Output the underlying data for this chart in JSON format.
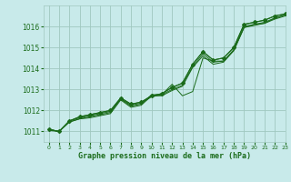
{
  "title": "Graphe pression niveau de la mer (hPa)",
  "background_color": "#c8eaea",
  "grid_color": "#a0c8c0",
  "line_color": "#1a6b1a",
  "xlim": [
    -0.5,
    23
  ],
  "ylim": [
    1010.5,
    1017.0
  ],
  "yticks": [
    1011,
    1012,
    1013,
    1014,
    1015,
    1016
  ],
  "xticks": [
    0,
    1,
    2,
    3,
    4,
    5,
    6,
    7,
    8,
    9,
    10,
    11,
    12,
    13,
    14,
    15,
    16,
    17,
    18,
    19,
    20,
    21,
    22,
    23
  ],
  "series": [
    [
      1011.1,
      1011.0,
      1011.5,
      1011.7,
      1011.8,
      1011.9,
      1012.0,
      1012.6,
      1012.3,
      1012.4,
      1012.7,
      1012.8,
      1013.1,
      1013.3,
      1014.2,
      1014.8,
      1014.4,
      1014.5,
      1015.0,
      1016.1,
      1016.2,
      1016.3,
      1016.5,
      1016.6
    ],
    [
      1011.1,
      1011.0,
      1011.5,
      1011.65,
      1011.75,
      1011.85,
      1011.95,
      1012.55,
      1012.25,
      1012.35,
      1012.65,
      1012.75,
      1013.25,
      1012.7,
      1012.9,
      1014.5,
      1014.35,
      1014.35,
      1014.85,
      1015.95,
      1016.1,
      1016.15,
      1016.4,
      1016.55
    ],
    [
      1011.05,
      1011.0,
      1011.45,
      1011.6,
      1011.7,
      1011.8,
      1011.9,
      1012.55,
      1012.2,
      1012.3,
      1012.75,
      1012.75,
      1013.0,
      1013.2,
      1014.1,
      1014.7,
      1014.3,
      1014.35,
      1014.9,
      1016.0,
      1016.1,
      1016.2,
      1016.4,
      1016.55
    ],
    [
      1011.1,
      1011.0,
      1011.45,
      1011.6,
      1011.65,
      1011.75,
      1011.85,
      1012.5,
      1012.15,
      1012.25,
      1012.7,
      1012.7,
      1012.95,
      1013.15,
      1014.05,
      1014.6,
      1014.2,
      1014.3,
      1014.85,
      1015.95,
      1016.05,
      1016.15,
      1016.35,
      1016.5
    ]
  ],
  "marker_series_y": [
    1011.1,
    1011.0,
    1011.5,
    1011.7,
    1011.8,
    1011.9,
    1012.0,
    1012.6,
    1012.3,
    1012.4,
    1012.7,
    1012.8,
    1013.1,
    1013.3,
    1014.2,
    1014.8,
    1014.4,
    1014.5,
    1015.0,
    1016.1,
    1016.2,
    1016.3,
    1016.5,
    1016.6
  ],
  "figsize": [
    3.2,
    2.0
  ],
  "dpi": 100
}
